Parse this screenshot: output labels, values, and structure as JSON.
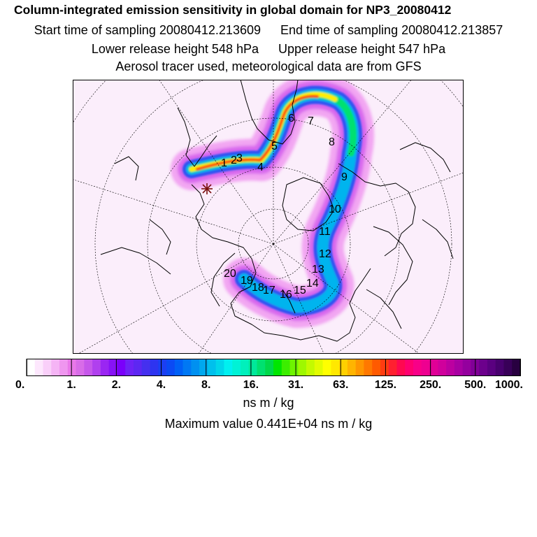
{
  "header": {
    "title": "Column-integrated emission sensitivity in global domain for NP3_20080412",
    "start_time": "Start time of sampling 20080412.213609",
    "end_time": "End time of sampling 20080412.213857",
    "lower_height": "Lower release height  548 hPa",
    "upper_height": "Upper release height  547 hPa",
    "tracer_info": "Aerosol tracer used, meteorological data are from GFS"
  },
  "colorbar": {
    "ticks": [
      "0.",
      "1.",
      "2.",
      "4.",
      "8.",
      "16.",
      "31.",
      "63.",
      "125.",
      "250.",
      "500.",
      "1000."
    ],
    "colors": [
      "#ffffff",
      "#fde7fd",
      "#f9cff9",
      "#f5b4f5",
      "#ef96ef",
      "#e978e9",
      "#d86ce8",
      "#c657ea",
      "#b040ee",
      "#9a26f2",
      "#8712f6",
      "#7a00fb",
      "#6e22f6",
      "#5d27f2",
      "#4530ef",
      "#2e34f0",
      "#1b3ff2",
      "#0b4af4",
      "#0060f6",
      "#0078f4",
      "#0090f0",
      "#00a8ee",
      "#00c0ec",
      "#00d6ea",
      "#00f0f0",
      "#00f2d6",
      "#00f0bc",
      "#00e89a",
      "#00e070",
      "#00d84a",
      "#00e600",
      "#3cee00",
      "#6ef400",
      "#9ef800",
      "#c4fa00",
      "#e2fc00",
      "#ffff00",
      "#ffe800",
      "#ffd000",
      "#ffb400",
      "#ff9600",
      "#ff7800",
      "#ff5a00",
      "#ff3c10",
      "#ff2030",
      "#ff0850",
      "#ff0070",
      "#f80088",
      "#ee0090",
      "#e00096",
      "#d0009c",
      "#bc00a0",
      "#a800a2",
      "#94009e",
      "#800096",
      "#6c008c",
      "#5a0080",
      "#48006e",
      "#380058",
      "#280040"
    ],
    "unit": "ns m / kg"
  },
  "max_value": "Maximum value  0.441E+04 ns m / kg",
  "map": {
    "release_marker": "release-point",
    "day_labels": [
      "1",
      "2",
      "3",
      "4",
      "5",
      "6",
      "7",
      "8",
      "9",
      "10",
      "11",
      "12",
      "13",
      "14",
      "15",
      "16",
      "17",
      "18",
      "19",
      "20"
    ]
  }
}
